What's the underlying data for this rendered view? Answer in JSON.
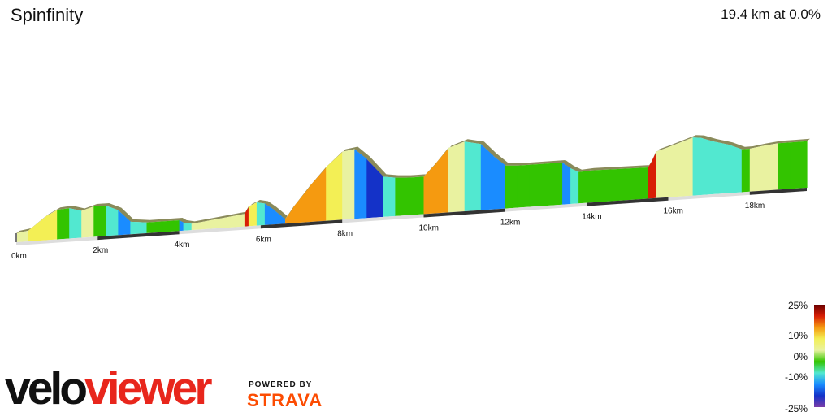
{
  "header": {
    "title": "Spinfinity",
    "summary": "19.4 km at 0.0%"
  },
  "chart_data": {
    "type": "area",
    "title": "Spinfinity",
    "total_distance_km": 19.4,
    "average_grade_pct": 0.0,
    "x_unit": "km",
    "x_ticks": [
      "0km",
      "2km",
      "4km",
      "6km",
      "8km",
      "10km",
      "12km",
      "14km",
      "16km",
      "18km"
    ],
    "profile": {
      "distance_km": [
        0,
        0.3,
        0.7,
        1.0,
        1.3,
        1.6,
        1.9,
        2.2,
        2.5,
        2.8,
        3.0,
        3.2,
        3.6,
        4.0,
        4.1,
        4.3,
        5.6,
        5.7,
        5.9,
        6.1,
        6.3,
        6.5,
        6.6,
        6.8,
        7.2,
        7.6,
        8.0,
        8.3,
        8.6,
        9.0,
        9.3,
        9.6,
        10.0,
        10.3,
        10.6,
        11.0,
        11.4,
        11.7,
        12.0,
        12.3,
        12.6,
        13.0,
        13.4,
        13.6,
        13.8,
        14.1,
        15.5,
        15.6,
        15.7,
        16.0,
        16.4,
        16.6,
        16.8,
        17.1,
        17.5,
        17.8,
        18.0,
        18.3,
        18.7,
        19.0,
        19.4
      ],
      "relative_height": [
        0.1,
        0.12,
        0.26,
        0.33,
        0.34,
        0.3,
        0.34,
        0.34,
        0.28,
        0.14,
        0.13,
        0.12,
        0.12,
        0.12,
        0.09,
        0.07,
        0.14,
        0.22,
        0.26,
        0.24,
        0.17,
        0.09,
        0.05,
        0.18,
        0.4,
        0.6,
        0.76,
        0.78,
        0.66,
        0.45,
        0.43,
        0.42,
        0.42,
        0.56,
        0.72,
        0.78,
        0.74,
        0.6,
        0.48,
        0.47,
        0.47,
        0.47,
        0.47,
        0.4,
        0.35,
        0.36,
        0.35,
        0.42,
        0.52,
        0.56,
        0.62,
        0.65,
        0.64,
        0.59,
        0.54,
        0.48,
        0.48,
        0.5,
        0.52,
        0.52,
        0.52
      ]
    },
    "legend": {
      "ticks": [
        "25%",
        "10%",
        "0%",
        "-10%",
        "-25%"
      ],
      "tick_values": [
        25,
        10,
        0,
        -10,
        -25
      ],
      "scale_colors": [
        "#6b0000",
        "#d81e05",
        "#f59a10",
        "#f3ef55",
        "#e9f2a0",
        "#33c400",
        "#52e8d0",
        "#1a8cff",
        "#1432c8",
        "#7a3da8"
      ]
    },
    "grid": false,
    "legend_placement": "bottom-right"
  },
  "branding": {
    "velo": "velo",
    "viewer": "viewer",
    "powered_by": "POWERED BY",
    "strava": "STRAVA"
  }
}
